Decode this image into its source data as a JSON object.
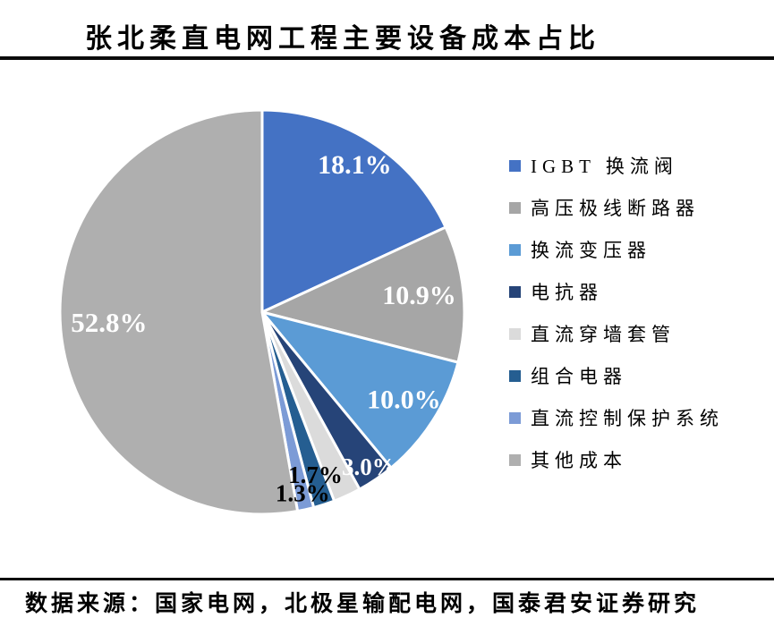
{
  "title": "张北柔直电网工程主要设备成本占比",
  "source": "数据来源：国家电网，北极星输配电网，国泰君安证券研究",
  "chart_data": {
    "type": "pie",
    "title": "张北柔直电网工程主要设备成本占比",
    "start_angle_deg": 0,
    "direction": "clockwise",
    "legend_position": "right",
    "gap_stroke_color": "#ffffff",
    "gap_stroke_width": 3,
    "slices": [
      {
        "label": "IGBT 换流阀",
        "value": 18.1,
        "color": "#4472C4",
        "data_label": "18.1%",
        "label_color": "#FFFFFF",
        "label_r": 0.85,
        "label_size": 30
      },
      {
        "label": "高压极线断路器",
        "value": 10.9,
        "color": "#A6A6A6",
        "data_label": "10.9%",
        "label_color": "#FFFFFF",
        "label_r": 0.78,
        "label_size": 30
      },
      {
        "label": "换流变压器",
        "value": 10.0,
        "color": "#5B9BD5",
        "data_label": "10.0%",
        "label_color": "#FFFFFF",
        "label_r": 0.83,
        "label_size": 30
      },
      {
        "label": "电抗器",
        "value": 3.0,
        "color": "#264478",
        "data_label": "3.0%",
        "label_color": "#FFFFFF",
        "label_r": 0.94,
        "label_size": 27
      },
      {
        "label": "直流穿墙套管",
        "value": 2.2,
        "color": "#DBDBDB",
        "data_label": "",
        "label_color": "",
        "label_r": 0,
        "label_size": 0
      },
      {
        "label": "组合电器",
        "value": 1.7,
        "color": "#255E91",
        "data_label": "1.7%",
        "label_color": "#000000",
        "label_r": 0.86,
        "label_size": 27
      },
      {
        "label": "直流控制保护系统",
        "value": 1.3,
        "color": "#7C9BD6",
        "data_label": "1.3%",
        "label_color": "#000000",
        "label_r": 0.93,
        "label_size": 27
      },
      {
        "label": "其他成本",
        "value": 52.8,
        "color": "#AFAFAF",
        "data_label": "52.8%",
        "label_color": "#FFFFFF",
        "label_r": 0.76,
        "label_size": 31
      }
    ]
  }
}
